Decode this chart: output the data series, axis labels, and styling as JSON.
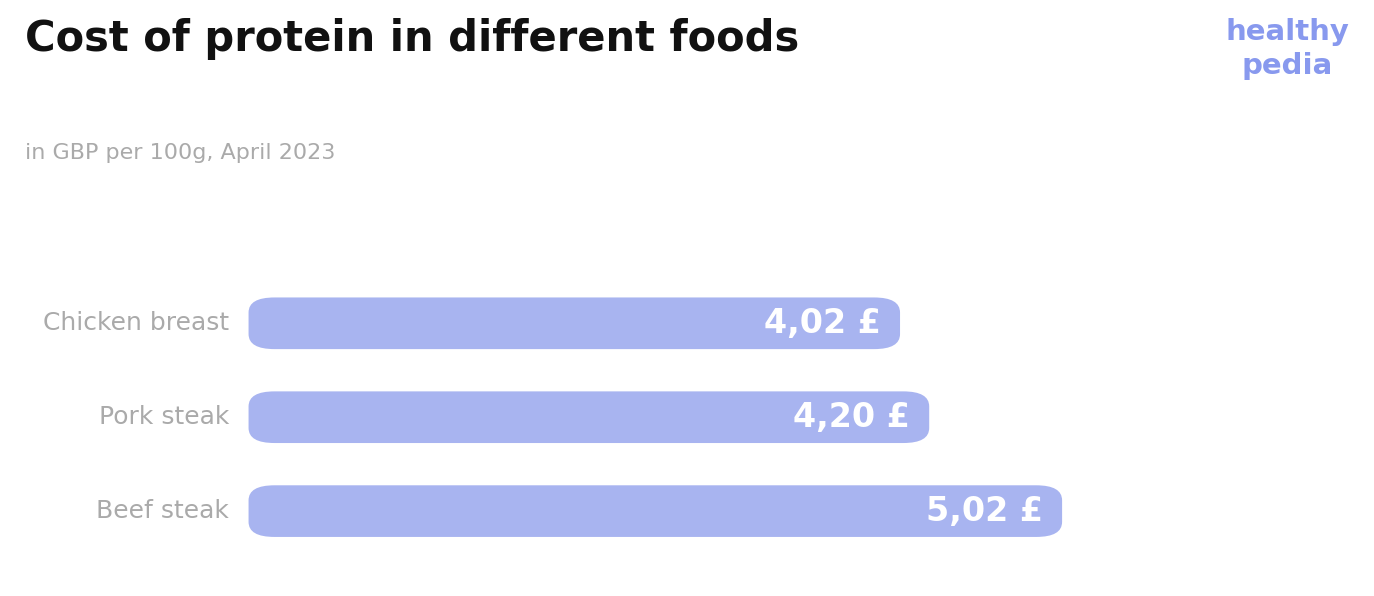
{
  "title": "Cost of protein in different foods",
  "subtitle": "in GBP per 100g, April 2023",
  "brand": "healthy\npedia",
  "categories": [
    "Chicken breast",
    "Pork steak",
    "Beef steak"
  ],
  "values": [
    4.02,
    4.2,
    5.02
  ],
  "labels": [
    "4,02 £",
    "4,20 £",
    "5,02 £"
  ],
  "bar_color": "#a8b4f0",
  "label_color": "#ffffff",
  "category_color": "#aaaaaa",
  "title_color": "#111111",
  "subtitle_color": "#aaaaaa",
  "brand_color": "#8899ee",
  "background_color": "#ffffff",
  "xlim_max": 5.8,
  "bar_height": 0.55,
  "title_fontsize": 30,
  "subtitle_fontsize": 16,
  "category_fontsize": 18,
  "label_fontsize": 24,
  "brand_fontsize": 21
}
